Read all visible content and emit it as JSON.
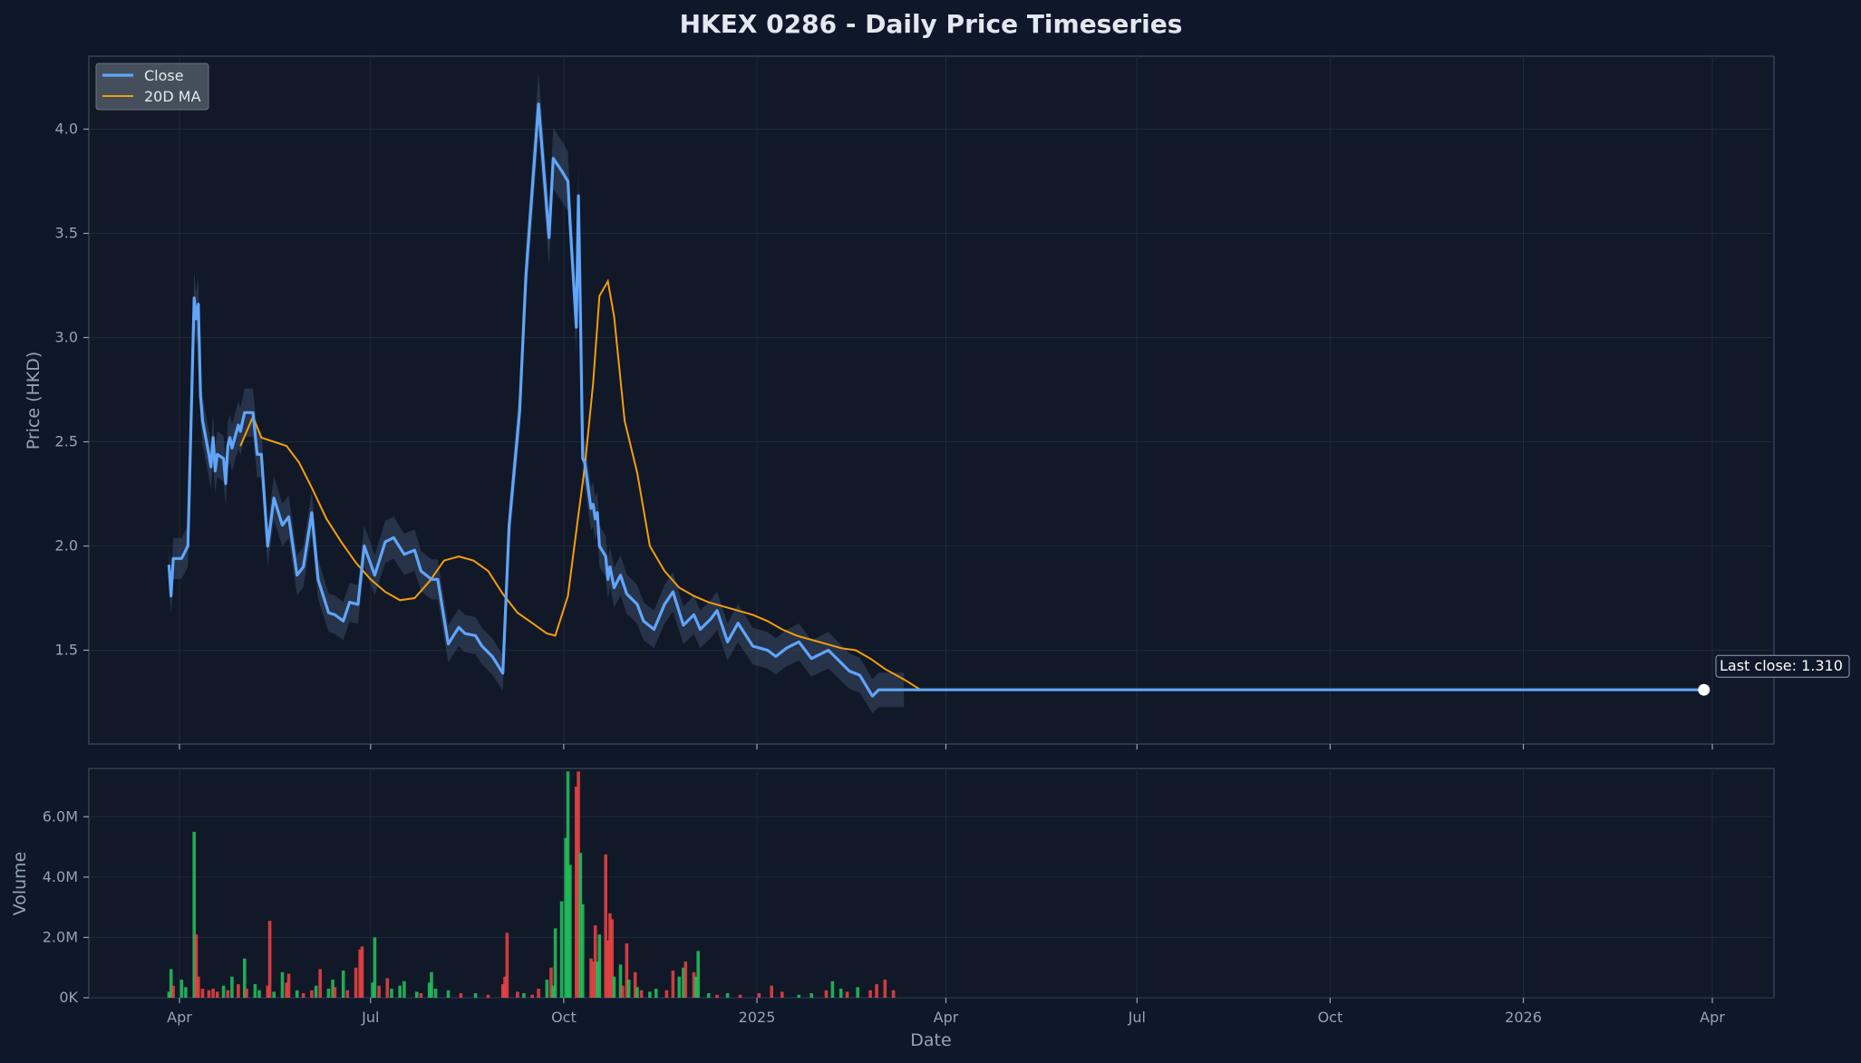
{
  "chart_data": {
    "title": "HKEX 0286 - Daily Price Timeseries",
    "xlabel": "Date",
    "x_ticks": [
      "Apr",
      "Jul",
      "Oct",
      "2025",
      "Apr",
      "Jul",
      "Oct",
      "2026",
      "Apr"
    ],
    "colors": {
      "background": "#0f172a",
      "panel": "#111827",
      "close": "#60a5fa",
      "ma": "#f59e0b",
      "band": "#3b4a66",
      "up": "#22c55e",
      "down": "#ef4444",
      "text": "#94a3b8"
    },
    "price_panel": {
      "type": "line",
      "ylabel": "Price (HKD)",
      "ylim": [
        1.05,
        4.35
      ],
      "y_ticks": [
        "1.5",
        "2.0",
        "2.5",
        "3.0",
        "3.5",
        "4.0"
      ],
      "grid": true,
      "legend_position": "top-left",
      "series": [
        {
          "name": "Close",
          "x": [
            "2024-03-27",
            "2024-03-28",
            "2024-03-29",
            "2024-04-02",
            "2024-04-05",
            "2024-04-08",
            "2024-04-09",
            "2024-04-10",
            "2024-04-11",
            "2024-04-12",
            "2024-04-15",
            "2024-04-16",
            "2024-04-17",
            "2024-04-18",
            "2024-04-19",
            "2024-04-22",
            "2024-04-23",
            "2024-04-24",
            "2024-04-25",
            "2024-04-26",
            "2024-04-29",
            "2024-04-30",
            "2024-05-02",
            "2024-05-06",
            "2024-05-08",
            "2024-05-10",
            "2024-05-13",
            "2024-05-16",
            "2024-05-20",
            "2024-05-23",
            "2024-05-27",
            "2024-05-30",
            "2024-06-03",
            "2024-06-06",
            "2024-06-11",
            "2024-06-14",
            "2024-06-18",
            "2024-06-21",
            "2024-06-25",
            "2024-06-28",
            "2024-07-03",
            "2024-07-08",
            "2024-07-12",
            "2024-07-17",
            "2024-07-22",
            "2024-07-25",
            "2024-07-30",
            "2024-08-02",
            "2024-08-07",
            "2024-08-12",
            "2024-08-15",
            "2024-08-20",
            "2024-08-23",
            "2024-08-28",
            "2024-09-02",
            "2024-09-05",
            "2024-09-10",
            "2024-09-13",
            "2024-09-19",
            "2024-09-24",
            "2024-09-26",
            "2024-09-30",
            "2024-10-03",
            "2024-10-04",
            "2024-10-07",
            "2024-10-08",
            "2024-10-09",
            "2024-10-10",
            "2024-10-11",
            "2024-10-14",
            "2024-10-15",
            "2024-10-16",
            "2024-10-17",
            "2024-10-18",
            "2024-10-21",
            "2024-10-22",
            "2024-10-23",
            "2024-10-24",
            "2024-10-25",
            "2024-10-28",
            "2024-10-31",
            "2024-11-05",
            "2024-11-08",
            "2024-11-13",
            "2024-11-18",
            "2024-11-22",
            "2024-11-27",
            "2024-12-02",
            "2024-12-05",
            "2024-12-10",
            "2024-12-13",
            "2024-12-18",
            "2024-12-23",
            "2024-12-30",
            "2025-01-06",
            "2025-01-10",
            "2025-01-15",
            "2025-01-21",
            "2025-01-27",
            "2025-02-04",
            "2025-02-10",
            "2025-02-14",
            "2025-02-19",
            "2025-02-25",
            "2025-02-28",
            "2025-03-04",
            "2025-03-12",
            "2026-03-28"
          ],
          "values": [
            1.91,
            1.76,
            1.94,
            1.94,
            2.0,
            3.19,
            3.09,
            3.16,
            2.72,
            2.6,
            2.44,
            2.38,
            2.52,
            2.36,
            2.44,
            2.42,
            2.3,
            2.48,
            2.52,
            2.47,
            2.58,
            2.55,
            2.64,
            2.64,
            2.44,
            2.44,
            2.0,
            2.23,
            2.1,
            2.14,
            1.86,
            1.9,
            2.16,
            1.84,
            1.68,
            1.67,
            1.64,
            1.73,
            1.72,
            2.0,
            1.86,
            2.02,
            2.04,
            1.96,
            1.98,
            1.88,
            1.84,
            1.84,
            1.53,
            1.61,
            1.58,
            1.57,
            1.52,
            1.47,
            1.39,
            2.1,
            2.65,
            3.3,
            4.12,
            3.48,
            3.86,
            3.8,
            3.75,
            3.55,
            3.05,
            3.68,
            3.1,
            2.42,
            2.4,
            2.18,
            2.2,
            2.13,
            2.16,
            2.0,
            1.95,
            1.84,
            1.9,
            1.85,
            1.8,
            1.86,
            1.77,
            1.72,
            1.64,
            1.6,
            1.72,
            1.78,
            1.62,
            1.67,
            1.6,
            1.65,
            1.69,
            1.54,
            1.63,
            1.52,
            1.5,
            1.47,
            1.51,
            1.54,
            1.46,
            1.5,
            1.44,
            1.4,
            1.38,
            1.28,
            1.31,
            1.31,
            1.31,
            1.31
          ]
        },
        {
          "name": "20D MA",
          "x": [
            "2024-04-30",
            "2024-05-06",
            "2024-05-10",
            "2024-05-16",
            "2024-05-22",
            "2024-05-28",
            "2024-06-03",
            "2024-06-10",
            "2024-06-17",
            "2024-06-24",
            "2024-07-01",
            "2024-07-08",
            "2024-07-15",
            "2024-07-22",
            "2024-07-29",
            "2024-08-05",
            "2024-08-12",
            "2024-08-19",
            "2024-08-26",
            "2024-09-02",
            "2024-09-09",
            "2024-09-16",
            "2024-09-23",
            "2024-09-27",
            "2024-10-03",
            "2024-10-08",
            "2024-10-11",
            "2024-10-15",
            "2024-10-18",
            "2024-10-22",
            "2024-10-25",
            "2024-10-30",
            "2024-11-05",
            "2024-11-11",
            "2024-11-18",
            "2024-11-25",
            "2024-12-02",
            "2024-12-09",
            "2024-12-16",
            "2024-12-23",
            "2024-12-30",
            "2025-01-06",
            "2025-01-13",
            "2025-01-20",
            "2025-01-27",
            "2025-02-03",
            "2025-02-10",
            "2025-02-17",
            "2025-02-24",
            "2025-03-03",
            "2025-03-12",
            "2025-03-20",
            "2026-03-28"
          ],
          "values": [
            2.48,
            2.62,
            2.52,
            2.5,
            2.48,
            2.4,
            2.28,
            2.13,
            2.02,
            1.92,
            1.84,
            1.78,
            1.74,
            1.75,
            1.83,
            1.93,
            1.95,
            1.93,
            1.88,
            1.77,
            1.68,
            1.63,
            1.58,
            1.57,
            1.76,
            2.15,
            2.38,
            2.78,
            3.2,
            3.27,
            3.1,
            2.6,
            2.35,
            2.0,
            1.88,
            1.8,
            1.76,
            1.73,
            1.71,
            1.69,
            1.67,
            1.64,
            1.6,
            1.57,
            1.55,
            1.53,
            1.51,
            1.5,
            1.46,
            1.41,
            1.36,
            1.31,
            1.31
          ]
        }
      ],
      "band_label": "",
      "last_close_label": "Last close: 1.310"
    },
    "volume_panel": {
      "type": "bar",
      "ylabel": "Volume",
      "ylim": [
        0,
        7600000
      ],
      "y_ticks": [
        "0K",
        "2.0M",
        "4.0M",
        "6.0M"
      ],
      "grid": true,
      "bars": [
        {
          "x": "2024-03-27",
          "v": 200000,
          "up": true
        },
        {
          "x": "2024-03-28",
          "v": 950000,
          "up": true
        },
        {
          "x": "2024-03-29",
          "v": 400000,
          "up": false
        },
        {
          "x": "2024-04-02",
          "v": 600000,
          "up": true
        },
        {
          "x": "2024-04-04",
          "v": 350000,
          "up": true
        },
        {
          "x": "2024-04-08",
          "v": 5500000,
          "up": true
        },
        {
          "x": "2024-04-09",
          "v": 2100000,
          "up": false
        },
        {
          "x": "2024-04-10",
          "v": 700000,
          "up": false
        },
        {
          "x": "2024-04-12",
          "v": 300000,
          "up": false
        },
        {
          "x": "2024-04-15",
          "v": 250000,
          "up": false
        },
        {
          "x": "2024-04-17",
          "v": 300000,
          "up": false
        },
        {
          "x": "2024-04-19",
          "v": 200000,
          "up": false
        },
        {
          "x": "2024-04-22",
          "v": 400000,
          "up": true
        },
        {
          "x": "2024-04-24",
          "v": 250000,
          "up": false
        },
        {
          "x": "2024-04-26",
          "v": 700000,
          "up": true
        },
        {
          "x": "2024-04-29",
          "v": 450000,
          "up": false
        },
        {
          "x": "2024-05-02",
          "v": 1300000,
          "up": true
        },
        {
          "x": "2024-05-03",
          "v": 300000,
          "up": false
        },
        {
          "x": "2024-05-07",
          "v": 450000,
          "up": true
        },
        {
          "x": "2024-05-09",
          "v": 250000,
          "up": true
        },
        {
          "x": "2024-05-13",
          "v": 400000,
          "up": false
        },
        {
          "x": "2024-05-14",
          "v": 2550000,
          "up": false
        },
        {
          "x": "2024-05-16",
          "v": 200000,
          "up": true
        },
        {
          "x": "2024-05-20",
          "v": 850000,
          "up": true
        },
        {
          "x": "2024-05-22",
          "v": 500000,
          "up": false
        },
        {
          "x": "2024-05-23",
          "v": 800000,
          "up": false
        },
        {
          "x": "2024-05-27",
          "v": 250000,
          "up": true
        },
        {
          "x": "2024-05-30",
          "v": 150000,
          "up": false
        },
        {
          "x": "2024-06-03",
          "v": 250000,
          "up": false
        },
        {
          "x": "2024-06-05",
          "v": 400000,
          "up": true
        },
        {
          "x": "2024-06-07",
          "v": 950000,
          "up": false
        },
        {
          "x": "2024-06-11",
          "v": 300000,
          "up": true
        },
        {
          "x": "2024-06-13",
          "v": 600000,
          "up": true
        },
        {
          "x": "2024-06-14",
          "v": 350000,
          "up": false
        },
        {
          "x": "2024-06-18",
          "v": 900000,
          "up": true
        },
        {
          "x": "2024-06-20",
          "v": 250000,
          "up": false
        },
        {
          "x": "2024-06-24",
          "v": 1000000,
          "up": false
        },
        {
          "x": "2024-06-26",
          "v": 1600000,
          "up": false
        },
        {
          "x": "2024-06-27",
          "v": 1700000,
          "up": false
        },
        {
          "x": "2024-07-02",
          "v": 500000,
          "up": true
        },
        {
          "x": "2024-07-03",
          "v": 2000000,
          "up": true
        },
        {
          "x": "2024-07-05",
          "v": 400000,
          "up": false
        },
        {
          "x": "2024-07-09",
          "v": 650000,
          "up": false
        },
        {
          "x": "2024-07-11",
          "v": 300000,
          "up": true
        },
        {
          "x": "2024-07-15",
          "v": 400000,
          "up": true
        },
        {
          "x": "2024-07-17",
          "v": 550000,
          "up": true
        },
        {
          "x": "2024-07-23",
          "v": 200000,
          "up": true
        },
        {
          "x": "2024-07-25",
          "v": 150000,
          "up": false
        },
        {
          "x": "2024-07-29",
          "v": 500000,
          "up": true
        },
        {
          "x": "2024-07-30",
          "v": 850000,
          "up": true
        },
        {
          "x": "2024-08-01",
          "v": 300000,
          "up": true
        },
        {
          "x": "2024-08-07",
          "v": 250000,
          "up": true
        },
        {
          "x": "2024-08-13",
          "v": 150000,
          "up": false
        },
        {
          "x": "2024-08-20",
          "v": 150000,
          "up": true
        },
        {
          "x": "2024-08-26",
          "v": 100000,
          "up": false
        },
        {
          "x": "2024-09-02",
          "v": 450000,
          "up": false
        },
        {
          "x": "2024-09-03",
          "v": 700000,
          "up": false
        },
        {
          "x": "2024-09-04",
          "v": 2150000,
          "up": false
        },
        {
          "x": "2024-09-09",
          "v": 200000,
          "up": false
        },
        {
          "x": "2024-09-12",
          "v": 150000,
          "up": true
        },
        {
          "x": "2024-09-16",
          "v": 100000,
          "up": false
        },
        {
          "x": "2024-09-19",
          "v": 300000,
          "up": false
        },
        {
          "x": "2024-09-23",
          "v": 600000,
          "up": true
        },
        {
          "x": "2024-09-25",
          "v": 1000000,
          "up": false
        },
        {
          "x": "2024-09-26",
          "v": 400000,
          "up": true
        },
        {
          "x": "2024-09-27",
          "v": 2300000,
          "up": true
        },
        {
          "x": "2024-09-30",
          "v": 3200000,
          "up": true
        },
        {
          "x": "2024-10-02",
          "v": 5300000,
          "up": true
        },
        {
          "x": "2024-10-03",
          "v": 7500000,
          "up": true
        },
        {
          "x": "2024-10-04",
          "v": 4400000,
          "up": true
        },
        {
          "x": "2024-10-07",
          "v": 7000000,
          "up": false
        },
        {
          "x": "2024-10-08",
          "v": 7500000,
          "up": false
        },
        {
          "x": "2024-10-09",
          "v": 4800000,
          "up": true
        },
        {
          "x": "2024-10-10",
          "v": 3100000,
          "up": true
        },
        {
          "x": "2024-10-14",
          "v": 1300000,
          "up": false
        },
        {
          "x": "2024-10-15",
          "v": 1200000,
          "up": false
        },
        {
          "x": "2024-10-16",
          "v": 2400000,
          "up": false
        },
        {
          "x": "2024-10-17",
          "v": 1200000,
          "up": true
        },
        {
          "x": "2024-10-18",
          "v": 2100000,
          "up": true
        },
        {
          "x": "2024-10-21",
          "v": 4750000,
          "up": false
        },
        {
          "x": "2024-10-22",
          "v": 1900000,
          "up": false
        },
        {
          "x": "2024-10-23",
          "v": 2800000,
          "up": false
        },
        {
          "x": "2024-10-24",
          "v": 2600000,
          "up": false
        },
        {
          "x": "2024-10-25",
          "v": 700000,
          "up": true
        },
        {
          "x": "2024-10-28",
          "v": 1100000,
          "up": true
        },
        {
          "x": "2024-10-29",
          "v": 400000,
          "up": false
        },
        {
          "x": "2024-10-31",
          "v": 1800000,
          "up": false
        },
        {
          "x": "2024-11-01",
          "v": 600000,
          "up": true
        },
        {
          "x": "2024-11-04",
          "v": 850000,
          "up": false
        },
        {
          "x": "2024-11-05",
          "v": 350000,
          "up": true
        },
        {
          "x": "2024-11-07",
          "v": 250000,
          "up": false
        },
        {
          "x": "2024-11-11",
          "v": 200000,
          "up": true
        },
        {
          "x": "2024-11-14",
          "v": 300000,
          "up": true
        },
        {
          "x": "2024-11-19",
          "v": 250000,
          "up": false
        },
        {
          "x": "2024-11-22",
          "v": 900000,
          "up": false
        },
        {
          "x": "2024-11-25",
          "v": 700000,
          "up": true
        },
        {
          "x": "2024-11-27",
          "v": 1000000,
          "up": true
        },
        {
          "x": "2024-11-28",
          "v": 1200000,
          "up": false
        },
        {
          "x": "2024-12-02",
          "v": 850000,
          "up": false
        },
        {
          "x": "2024-12-03",
          "v": 700000,
          "up": true
        },
        {
          "x": "2024-12-04",
          "v": 1550000,
          "up": true
        },
        {
          "x": "2024-12-09",
          "v": 150000,
          "up": true
        },
        {
          "x": "2024-12-13",
          "v": 100000,
          "up": false
        },
        {
          "x": "2024-12-18",
          "v": 150000,
          "up": true
        },
        {
          "x": "2024-12-24",
          "v": 100000,
          "up": false
        },
        {
          "x": "2025-01-02",
          "v": 150000,
          "up": false
        },
        {
          "x": "2025-01-08",
          "v": 400000,
          "up": false
        },
        {
          "x": "2025-01-13",
          "v": 200000,
          "up": false
        },
        {
          "x": "2025-01-21",
          "v": 100000,
          "up": true
        },
        {
          "x": "2025-01-27",
          "v": 150000,
          "up": true
        },
        {
          "x": "2025-02-03",
          "v": 250000,
          "up": false
        },
        {
          "x": "2025-02-06",
          "v": 550000,
          "up": true
        },
        {
          "x": "2025-02-10",
          "v": 300000,
          "up": true
        },
        {
          "x": "2025-02-13",
          "v": 200000,
          "up": false
        },
        {
          "x": "2025-02-18",
          "v": 350000,
          "up": true
        },
        {
          "x": "2025-02-24",
          "v": 250000,
          "up": false
        },
        {
          "x": "2025-02-27",
          "v": 450000,
          "up": false
        },
        {
          "x": "2025-03-03",
          "v": 600000,
          "up": false
        },
        {
          "x": "2025-03-07",
          "v": 250000,
          "up": false
        }
      ]
    }
  }
}
